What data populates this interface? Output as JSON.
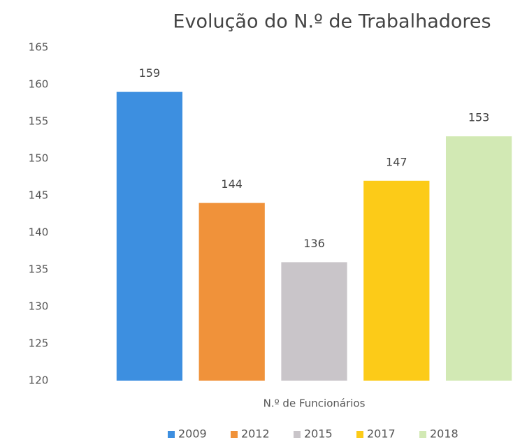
{
  "chart_data": {
    "type": "bar",
    "title": "Evolução do N.º de Trabalhadores",
    "categories": [
      "N.º de Funcionários"
    ],
    "series": [
      {
        "name": "2009",
        "color": "#3d8fe0",
        "values": [
          159
        ]
      },
      {
        "name": "2012",
        "color": "#f0923a",
        "values": [
          144
        ]
      },
      {
        "name": "2015",
        "color": "#c9c5c9",
        "values": [
          136
        ]
      },
      {
        "name": "2017",
        "color": "#fccb18",
        "values": [
          147
        ]
      },
      {
        "name": "2018",
        "color": "#d2e9b4",
        "values": [
          153
        ]
      }
    ],
    "ylim": [
      120,
      165
    ],
    "yticks": [
      120,
      125,
      130,
      135,
      140,
      145,
      150,
      155,
      160,
      165
    ],
    "grid": false,
    "legend": "bottom"
  }
}
